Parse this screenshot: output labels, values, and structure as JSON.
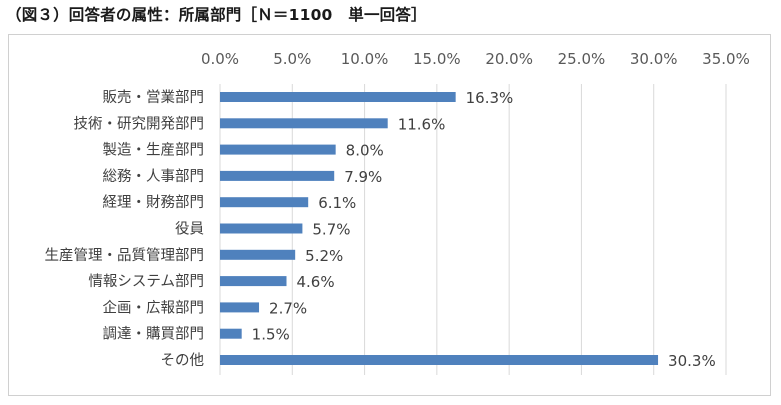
{
  "title": "（図３）回答者の属性：所属部門［Ｎ＝1100　単一回答］",
  "chart_data": {
    "type": "bar",
    "orientation": "horizontal",
    "categories": [
      "販売・営業部門",
      "技術・研究開発部門",
      "製造・生産部門",
      "総務・人事部門",
      "経理・財務部門",
      "役員",
      "生産管理・品質管理部門",
      "情報システム部門",
      "企画・広報部門",
      "調達・購買部門",
      "その他"
    ],
    "values": [
      16.3,
      11.6,
      8.0,
      7.9,
      6.1,
      5.7,
      5.2,
      4.6,
      2.7,
      1.5,
      30.3
    ],
    "value_labels": [
      "16.3%",
      "11.6%",
      "8.0%",
      "7.9%",
      "6.1%",
      "5.7%",
      "5.2%",
      "4.6%",
      "2.7%",
      "1.5%",
      "30.3%"
    ],
    "xlim": [
      0,
      35
    ],
    "ticks": [
      0,
      5,
      10,
      15,
      20,
      25,
      30,
      35
    ],
    "tick_labels": [
      "0.0%",
      "5.0%",
      "10.0%",
      "15.0%",
      "20.0%",
      "25.0%",
      "30.0%",
      "35.0%"
    ],
    "axis_position": "top",
    "grid": true,
    "legend": "none",
    "bar_color": "#4F81BD",
    "grid_color": "#d9d9d9"
  }
}
